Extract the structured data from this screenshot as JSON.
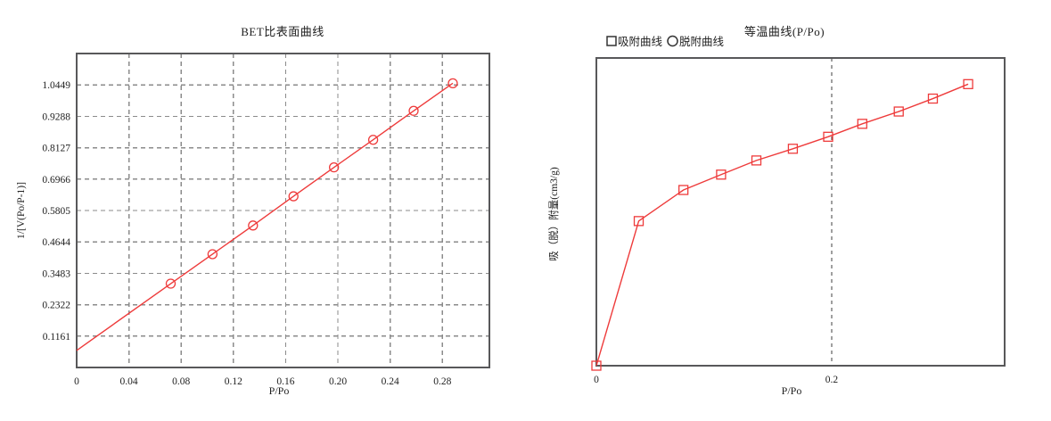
{
  "page": {
    "background": "#ffffff"
  },
  "colors": {
    "curve_red": "#ee3b3b",
    "grid_gray": "#8b8b8b",
    "axis_gray": "#58585a",
    "reference_line": "#3f3f3f",
    "text": "#212121"
  },
  "chart_data": [
    {
      "id": "bet",
      "type": "line",
      "title": "BET比表面曲线",
      "xlabel": "P/Po",
      "ylabel": "1/[V(Po/P-1)]",
      "xlim": [
        0,
        0.316
      ],
      "ylim": [
        0,
        1.161
      ],
      "xticks": [
        0,
        0.04,
        0.08,
        0.12,
        0.16,
        0.2,
        0.24,
        0.28
      ],
      "xtick_labels": [
        "0",
        "0.04",
        "0.08",
        "0.12",
        "0.16",
        "0.20",
        "0.24",
        "0.28"
      ],
      "yticks": [
        0.1161,
        0.2322,
        0.3483,
        0.4644,
        0.5805,
        0.6966,
        0.8127,
        0.9288,
        1.0449
      ],
      "ytick_labels": [
        "0.1161",
        "0.2322",
        "0.3483",
        "0.4644",
        "0.5805",
        "0.6966",
        "0.8127",
        "0.9288",
        "1.0449"
      ],
      "grid": "dashed-both-axes",
      "legend_position": "none",
      "marker": "circle",
      "line_start": {
        "x": 0,
        "y": 0.063
      },
      "series": [
        {
          "marker": "circle",
          "x": [
            0.072,
            0.104,
            0.135,
            0.166,
            0.197,
            0.227,
            0.258,
            0.288
          ],
          "y": [
            0.31,
            0.419,
            0.525,
            0.633,
            0.74,
            0.842,
            0.949,
            1.051
          ]
        }
      ]
    },
    {
      "id": "isotherm",
      "type": "line",
      "title": "等温曲线(P/Po)",
      "xlabel": "P/Po",
      "ylabel": "吸（脱）附量(cm3/g)",
      "legend": [
        {
          "label": "吸附曲线",
          "marker": "square"
        },
        {
          "label": "脱附曲线",
          "marker": "circle"
        }
      ],
      "legend_position": "top-left",
      "xlim": [
        0,
        0.347
      ],
      "ylim": [
        0,
        1
      ],
      "xticks": [
        0,
        0.2
      ],
      "xtick_labels": [
        "0",
        "0.2"
      ],
      "yticks": [],
      "ytick_labels": [],
      "grid": "off",
      "vlines": [
        0.2
      ],
      "y_axis_scale": "unlabeled-relative-units",
      "marker": "square",
      "series": [
        {
          "name": "吸附曲线",
          "marker": "square",
          "x": [
            0,
            0.036,
            0.074,
            0.106,
            0.136,
            0.167,
            0.197,
            0.226,
            0.257,
            0.286,
            0.316
          ],
          "y": [
            0,
            0.47,
            0.571,
            0.621,
            0.667,
            0.705,
            0.744,
            0.786,
            0.826,
            0.868,
            0.915
          ]
        },
        {
          "name": "脱附曲线",
          "marker": "circle",
          "x": [],
          "y": []
        }
      ]
    }
  ]
}
